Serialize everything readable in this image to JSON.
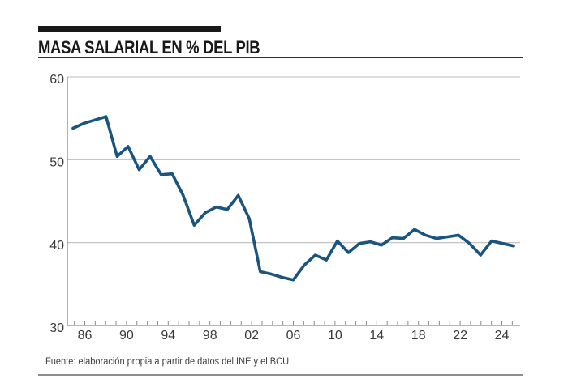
{
  "header": {
    "title": "MASA SALARIAL EN % DEL PIB"
  },
  "footer": {
    "source": "Fuente: elaboración propia a partir de datos del INE y el BCU."
  },
  "axes": {
    "y_labels": [
      "60",
      "50",
      "40",
      "30"
    ],
    "x_labels": [
      "86",
      "90",
      "94",
      "98",
      "02",
      "06",
      "10",
      "14",
      "18",
      "22",
      "24"
    ]
  },
  "colors": {
    "line": "#1A547F",
    "grid": "#bdbdbd",
    "axis": "#8a8a8a",
    "title": "#191919",
    "tick_text": "#3a3a3a"
  },
  "chart_data": {
    "type": "line",
    "title": "MASA SALARIAL EN % DEL PIB",
    "xlabel": "",
    "ylabel": "",
    "ylim": [
      30,
      60
    ],
    "y_ticks": [
      60,
      50,
      40,
      30
    ],
    "x_tick_labels": [
      "86",
      "90",
      "94",
      "98",
      "02",
      "06",
      "10",
      "14",
      "18",
      "22",
      "24"
    ],
    "grid": true,
    "legend": "none",
    "line_color": "#1A547F",
    "x": [
      1985,
      1986,
      1987,
      1988,
      1989,
      1990,
      1991,
      1992,
      1993,
      1994,
      1995,
      1996,
      1997,
      1998,
      1999,
      2000,
      2001,
      2002,
      2003,
      2004,
      2005,
      2006,
      2007,
      2008,
      2009,
      2010,
      2011,
      2012,
      2013,
      2014,
      2015,
      2016,
      2017,
      2018,
      2019,
      2020,
      2021,
      2022,
      2023,
      2024,
      2025
    ],
    "values": [
      53.8,
      54.4,
      54.8,
      55.2,
      50.4,
      51.6,
      48.8,
      50.4,
      48.2,
      48.3,
      45.7,
      42.1,
      43.6,
      44.3,
      44.0,
      45.7,
      42.9,
      36.5,
      36.2,
      35.8,
      35.5,
      37.3,
      38.5,
      37.9,
      40.2,
      38.8,
      39.9,
      40.1,
      39.7,
      40.6,
      40.5,
      41.6,
      40.9,
      40.5,
      40.7,
      40.9,
      39.9,
      38.5,
      40.2,
      39.9,
      39.6
    ],
    "source": "Fuente: elaboración propia a partir de datos del INE y el BCU."
  }
}
